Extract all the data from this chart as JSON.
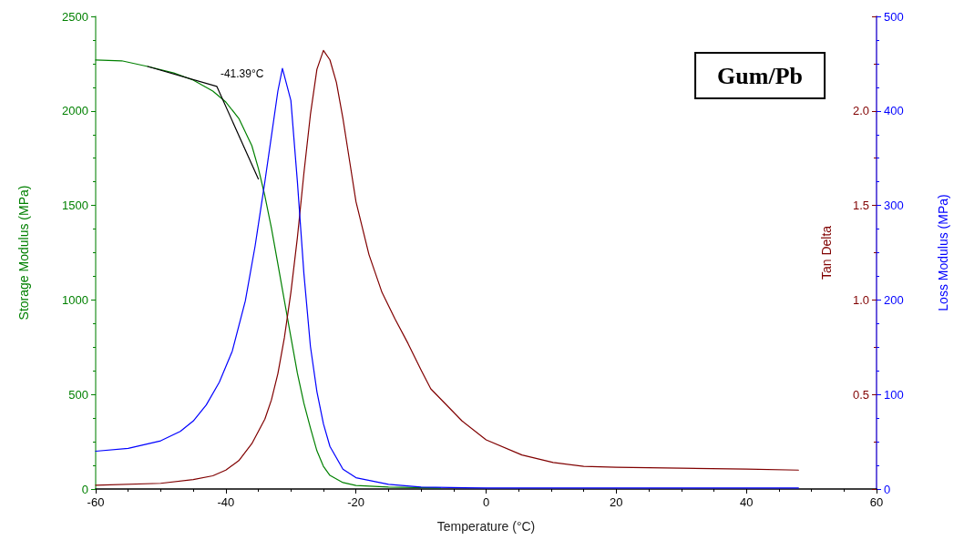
{
  "chart_data": {
    "type": "line",
    "title": "Gum/Pb",
    "xlabel": "Temperature (°C)",
    "ylabel": "Storage Modulus (MPa)",
    "y2label": "Tan Delta",
    "y3label": "Loss Modulus (MPa)",
    "xlim": [
      -60,
      60
    ],
    "xticks": [
      -60,
      -40,
      -20,
      0,
      20,
      40,
      60
    ],
    "ylim": [
      0,
      2500
    ],
    "yticks": [
      0,
      500,
      1000,
      1500,
      2000,
      2500
    ],
    "y2lim": [
      0,
      2.5
    ],
    "y2ticks": [
      {
        "value": 0,
        "label": null
      },
      0.5,
      {
        "value": 1,
        "label": "1.0"
      },
      1.5,
      {
        "value": 2,
        "label": "2.0"
      }
    ],
    "y3lim": [
      0,
      500
    ],
    "y3ticks": [
      0,
      100,
      200,
      300,
      400,
      500
    ],
    "grid": false,
    "marker": "none",
    "line_style": "solid",
    "series": [
      {
        "color": "#008000",
        "x": [
          -60,
          -56,
          -52,
          -48,
          -45,
          -42,
          -40,
          -38,
          -36,
          -35,
          -34,
          -33,
          -32,
          -31,
          -30,
          -29,
          -28,
          -27,
          -26,
          -25,
          -24,
          -22,
          -20,
          -15,
          -7
        ],
        "values": [
          2269,
          2265,
          2235,
          2201,
          2163,
          2105,
          2047,
          1960,
          1816,
          1696,
          1551,
          1382,
          1190,
          997,
          804,
          612,
          453,
          323,
          202,
          120,
          72,
          34,
          19,
          10,
          5
        ]
      },
      {
        "color": "#800000",
        "axis": "y2",
        "x": [
          -60,
          -50,
          -45,
          -42,
          -40,
          -38,
          -36,
          -34,
          -33,
          -32,
          -31,
          -30,
          -29,
          -28,
          -27,
          -26,
          -25,
          -24,
          -23,
          -22,
          -21,
          -20,
          -18,
          -16,
          -14,
          -12,
          -10,
          -8.5,
          -3.7,
          0,
          5.5,
          10.3,
          15,
          20,
          30,
          40,
          48
        ],
        "values": [
          0.02,
          0.03,
          0.05,
          0.07,
          0.1,
          0.15,
          0.24,
          0.37,
          0.47,
          0.61,
          0.8,
          1.04,
          1.33,
          1.67,
          1.98,
          2.22,
          2.32,
          2.27,
          2.15,
          1.96,
          1.74,
          1.52,
          1.24,
          1.04,
          0.9,
          0.77,
          0.63,
          0.53,
          0.36,
          0.26,
          0.18,
          0.14,
          0.12,
          0.115,
          0.11,
          0.105,
          0.1
        ]
      },
      {
        "color": "#0000ff",
        "axis": "y3",
        "x": [
          -60,
          -55,
          -50,
          -47,
          -45,
          -43,
          -41,
          -39,
          -37,
          -35.5,
          -34,
          -33,
          -32,
          -31.3,
          -30,
          -29,
          -28,
          -27,
          -26,
          -25,
          -24,
          -22,
          -20,
          -15,
          -10,
          0,
          48
        ],
        "values": [
          40,
          43,
          51,
          61,
          72,
          89,
          113,
          146,
          199,
          257,
          325,
          373,
          421,
          445,
          411,
          325,
          228,
          151,
          103,
          69,
          45,
          21,
          12,
          5,
          2,
          1,
          1
        ]
      },
      {
        "color": "#000000",
        "x": [
          -52,
          -41.39,
          -35
        ],
        "values": [
          2235,
          2130,
          1640
        ]
      }
    ],
    "annotations": [
      {
        "text": "-41.39°C",
        "x": -41.39,
        "y": 2130
      }
    ]
  }
}
